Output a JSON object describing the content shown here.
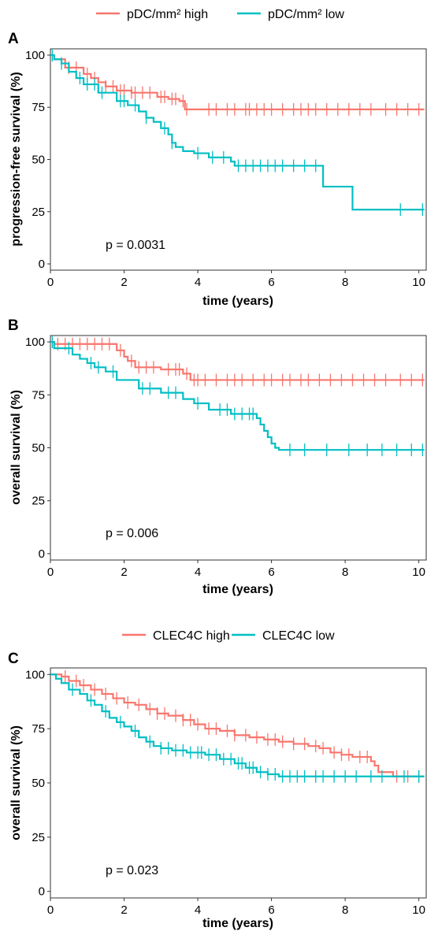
{
  "legend_top": {
    "items": [
      {
        "label": "pDC/mm² high",
        "color": "#F8766D"
      },
      {
        "label": "pDC/mm² low",
        "color": "#00BFC4"
      }
    ]
  },
  "legend_bottom": {
    "items": [
      {
        "label": "CLEC4C high",
        "color": "#F8766D"
      },
      {
        "label": "CLEC4C low",
        "color": "#00BFC4"
      }
    ]
  },
  "chart_data": [
    {
      "type": "line",
      "panel_label": "A",
      "xlabel": "time (years)",
      "ylabel": "progression-free survival (%)",
      "xlim": [
        0,
        10.2
      ],
      "ylim": [
        -3,
        103
      ],
      "xticks": [
        0,
        2,
        4,
        6,
        8,
        10
      ],
      "yticks": [
        0,
        25,
        50,
        75,
        100
      ],
      "annotation": "p = 0.0031",
      "series": [
        {
          "name": "pDC/mm² high",
          "color": "#F8766D",
          "x": [
            0,
            0.1,
            0.4,
            0.9,
            1.1,
            1.3,
            1.5,
            1.8,
            2.2,
            2.9,
            3.2,
            3.5,
            3.65,
            10.15
          ],
          "y": [
            100,
            98,
            94,
            91,
            89,
            87,
            85,
            83,
            82,
            80,
            79,
            78,
            74,
            74
          ],
          "censor_x": [
            0.5,
            0.7,
            1.0,
            1.2,
            1.5,
            1.7,
            1.9,
            2.0,
            2.2,
            2.3,
            2.5,
            2.7,
            3.0,
            3.1,
            3.3,
            3.4,
            3.6,
            3.7,
            4.3,
            4.5,
            4.8,
            5.0,
            5.3,
            5.4,
            5.6,
            5.8,
            6.0,
            6.3,
            6.6,
            6.8,
            7.0,
            7.2,
            7.5,
            7.8,
            8.1,
            8.4,
            8.7,
            9.1,
            9.4,
            9.7,
            10.0
          ]
        },
        {
          "name": "pDC/mm² low",
          "color": "#00BFC4",
          "x": [
            0,
            0.1,
            0.3,
            0.5,
            0.7,
            0.9,
            1.3,
            1.8,
            2.1,
            2.4,
            2.6,
            2.8,
            3.0,
            3.2,
            3.3,
            3.4,
            3.6,
            3.9,
            4.3,
            4.9,
            5.0,
            7.4,
            8.2,
            10.15
          ],
          "y": [
            100,
            98,
            96,
            92,
            89,
            86,
            82,
            78,
            76,
            73,
            70,
            68,
            65,
            62,
            58,
            56,
            54,
            53,
            51,
            49,
            47,
            37,
            26,
            26
          ],
          "censor_x": [
            0.05,
            0.3,
            0.8,
            1.0,
            1.2,
            1.4,
            1.9,
            2.0,
            2.3,
            2.6,
            3.1,
            3.3,
            4.0,
            4.4,
            4.7,
            5.1,
            5.3,
            5.5,
            5.7,
            5.9,
            6.1,
            6.3,
            6.6,
            6.9,
            7.2,
            9.5,
            10.1
          ]
        }
      ]
    },
    {
      "type": "line",
      "panel_label": "B",
      "xlabel": "time (years)",
      "ylabel": "overall survival (%)",
      "xlim": [
        0,
        10.2
      ],
      "ylim": [
        -3,
        103
      ],
      "xticks": [
        0,
        2,
        4,
        6,
        8,
        10
      ],
      "yticks": [
        0,
        25,
        50,
        75,
        100
      ],
      "annotation": "p = 0.006",
      "series": [
        {
          "name": "pDC/mm² high",
          "color": "#F8766D",
          "x": [
            0,
            0.1,
            1.8,
            2.0,
            2.1,
            2.3,
            3.0,
            3.6,
            3.8,
            10.15
          ],
          "y": [
            100,
            99,
            96,
            93,
            91,
            88,
            87,
            85,
            82,
            82
          ],
          "censor_x": [
            0.2,
            0.4,
            0.6,
            0.8,
            1.0,
            1.2,
            1.4,
            1.6,
            1.9,
            2.2,
            2.4,
            2.6,
            2.8,
            3.2,
            3.4,
            3.5,
            3.7,
            3.9,
            4.0,
            4.2,
            4.5,
            4.8,
            5.0,
            5.2,
            5.5,
            5.8,
            6.0,
            6.3,
            6.5,
            6.8,
            7.0,
            7.3,
            7.6,
            7.9,
            8.2,
            8.5,
            8.8,
            9.1,
            9.5,
            9.8,
            10.1
          ]
        },
        {
          "name": "pDC/mm² low",
          "color": "#00BFC4",
          "x": [
            0,
            0.1,
            0.6,
            0.8,
            1.0,
            1.2,
            1.5,
            1.8,
            2.4,
            3.0,
            3.6,
            3.9,
            4.3,
            4.9,
            5.6,
            5.7,
            5.8,
            5.9,
            6.0,
            6.1,
            6.2,
            10.15
          ],
          "y": [
            100,
            97,
            94,
            92,
            90,
            88,
            86,
            82,
            78,
            76,
            73,
            71,
            68,
            66,
            64,
            61,
            58,
            55,
            52,
            50,
            49,
            49
          ],
          "censor_x": [
            0.05,
            0.5,
            1.1,
            1.3,
            1.7,
            2.5,
            2.7,
            3.2,
            3.4,
            4.0,
            4.6,
            4.8,
            5.0,
            5.2,
            5.4,
            5.5,
            6.5,
            6.9,
            7.5,
            8.1,
            8.6,
            9.0,
            9.4,
            9.8,
            10.1
          ]
        }
      ]
    },
    {
      "type": "line",
      "panel_label": "C",
      "xlabel": "time (years)",
      "ylabel": "overall survival (%)",
      "xlim": [
        0,
        10.2
      ],
      "ylim": [
        -3,
        103
      ],
      "xticks": [
        0,
        2,
        4,
        6,
        8,
        10
      ],
      "yticks": [
        0,
        25,
        50,
        75,
        100
      ],
      "annotation": "p = 0.023",
      "series": [
        {
          "name": "CLEC4C high",
          "color": "#F8766D",
          "x": [
            0,
            0.3,
            0.5,
            0.8,
            1.1,
            1.4,
            1.7,
            2.0,
            2.3,
            2.6,
            2.9,
            3.2,
            3.6,
            3.9,
            4.2,
            4.6,
            5.0,
            5.4,
            5.8,
            6.2,
            6.6,
            7.0,
            7.3,
            7.6,
            7.9,
            8.2,
            8.7,
            8.8,
            8.9,
            9.3,
            10.15
          ],
          "y": [
            100,
            99,
            97,
            95,
            93,
            91,
            89,
            87,
            86,
            84,
            82,
            81,
            79,
            77,
            75,
            74,
            72,
            71,
            70,
            69,
            68,
            67,
            66,
            64,
            63,
            62,
            60,
            58,
            55,
            53,
            53
          ],
          "censor_x": [
            0.4,
            0.7,
            0.9,
            1.2,
            1.5,
            1.8,
            2.1,
            2.4,
            2.7,
            2.9,
            3.1,
            3.4,
            3.6,
            3.8,
            4.0,
            4.3,
            4.5,
            4.8,
            5.0,
            5.3,
            5.6,
            5.9,
            6.1,
            6.3,
            6.6,
            6.9,
            7.2,
            7.4,
            7.7,
            7.9,
            8.1,
            8.4,
            8.6,
            9.4,
            9.7,
            10.0
          ]
        },
        {
          "name": "CLEC4C low",
          "color": "#00BFC4",
          "x": [
            0,
            0.15,
            0.3,
            0.5,
            0.8,
            1.0,
            1.2,
            1.4,
            1.6,
            1.8,
            2.0,
            2.2,
            2.4,
            2.6,
            2.8,
            3.0,
            3.3,
            3.7,
            4.2,
            4.6,
            5.0,
            5.3,
            5.6,
            5.9,
            6.2,
            10.15
          ],
          "y": [
            100,
            98,
            96,
            93,
            91,
            88,
            86,
            83,
            80,
            78,
            76,
            74,
            71,
            69,
            67,
            66,
            65,
            64,
            63,
            61,
            59,
            57,
            55,
            54,
            53,
            53
          ],
          "censor_x": [
            0.6,
            1.1,
            1.5,
            1.9,
            2.3,
            2.7,
            3.0,
            3.2,
            3.4,
            3.6,
            3.8,
            4.0,
            4.1,
            4.3,
            4.5,
            4.7,
            4.9,
            5.1,
            5.2,
            5.4,
            5.5,
            5.7,
            5.9,
            6.1,
            6.3,
            6.5,
            6.7,
            6.9,
            7.2,
            7.4,
            7.7,
            8.0,
            8.3,
            8.7,
            9.0,
            9.6,
            10.0
          ]
        }
      ]
    }
  ]
}
